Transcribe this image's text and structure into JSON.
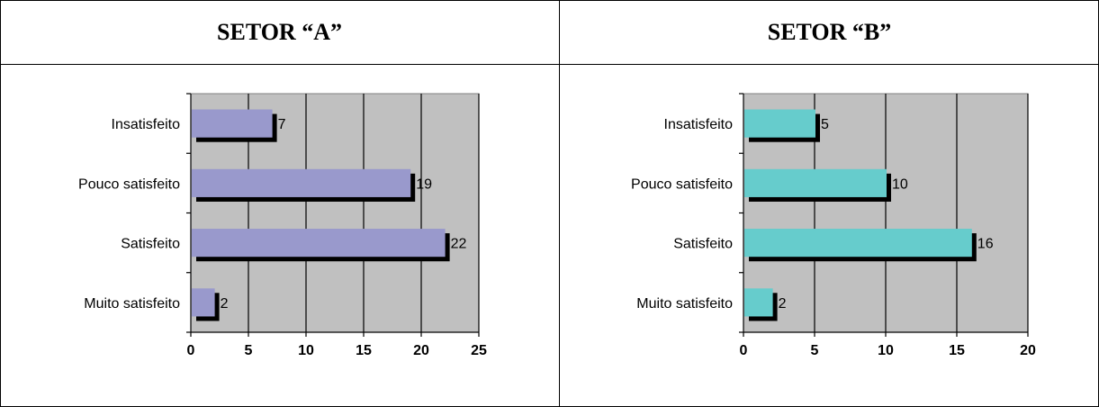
{
  "chart_data": [
    {
      "type": "bar",
      "orientation": "horizontal",
      "title": "SETOR “A”",
      "categories": [
        "Insatisfeito",
        "Pouco satisfeito",
        "Satisfeito",
        "Muito satisfeito"
      ],
      "values": [
        7,
        19,
        22,
        2
      ],
      "xlim": [
        0,
        25
      ],
      "xticks": [
        0,
        5,
        10,
        15,
        20,
        25
      ],
      "grid": "vertical",
      "bar_color": "#9999cc",
      "plot_bg": "#c0c0c0"
    },
    {
      "type": "bar",
      "orientation": "horizontal",
      "title": "SETOR “B”",
      "categories": [
        "Insatisfeito",
        "Pouco satisfeito",
        "Satisfeito",
        "Muito satisfeito"
      ],
      "values": [
        5,
        10,
        16,
        2
      ],
      "xlim": [
        0,
        20
      ],
      "xticks": [
        0,
        5,
        10,
        15,
        20
      ],
      "grid": "vertical",
      "bar_color": "#66cccc",
      "plot_bg": "#c0c0c0"
    }
  ]
}
